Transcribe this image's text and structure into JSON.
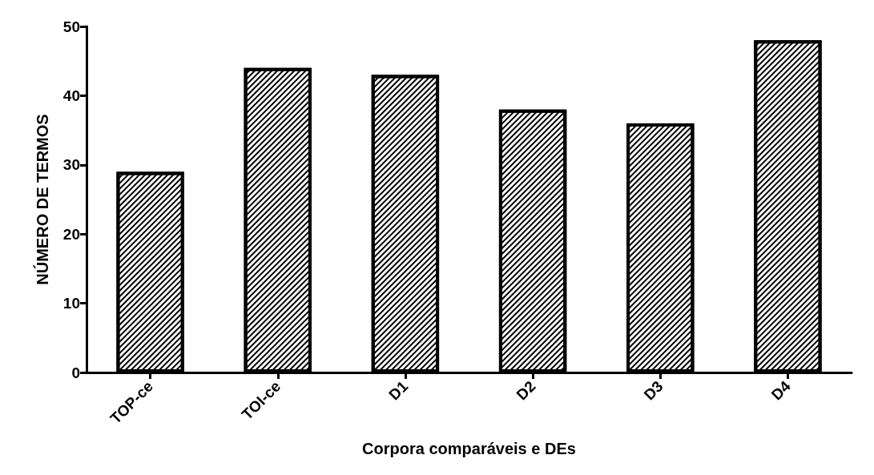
{
  "chart_data": {
    "type": "bar",
    "xlabel": "Corpora comparáveis e DEs",
    "ylabel": "NÚMERO DE TERMOS",
    "categories": [
      "TOP-ce",
      "TOI-ce",
      "D1",
      "D2",
      "D3",
      "D4"
    ],
    "values": [
      29,
      44,
      43,
      38,
      36,
      48
    ],
    "color": "#ffffff",
    "ylim": [
      0,
      50
    ],
    "yticks": [
      0,
      10,
      20,
      30,
      40,
      50
    ],
    "grid": false
  }
}
